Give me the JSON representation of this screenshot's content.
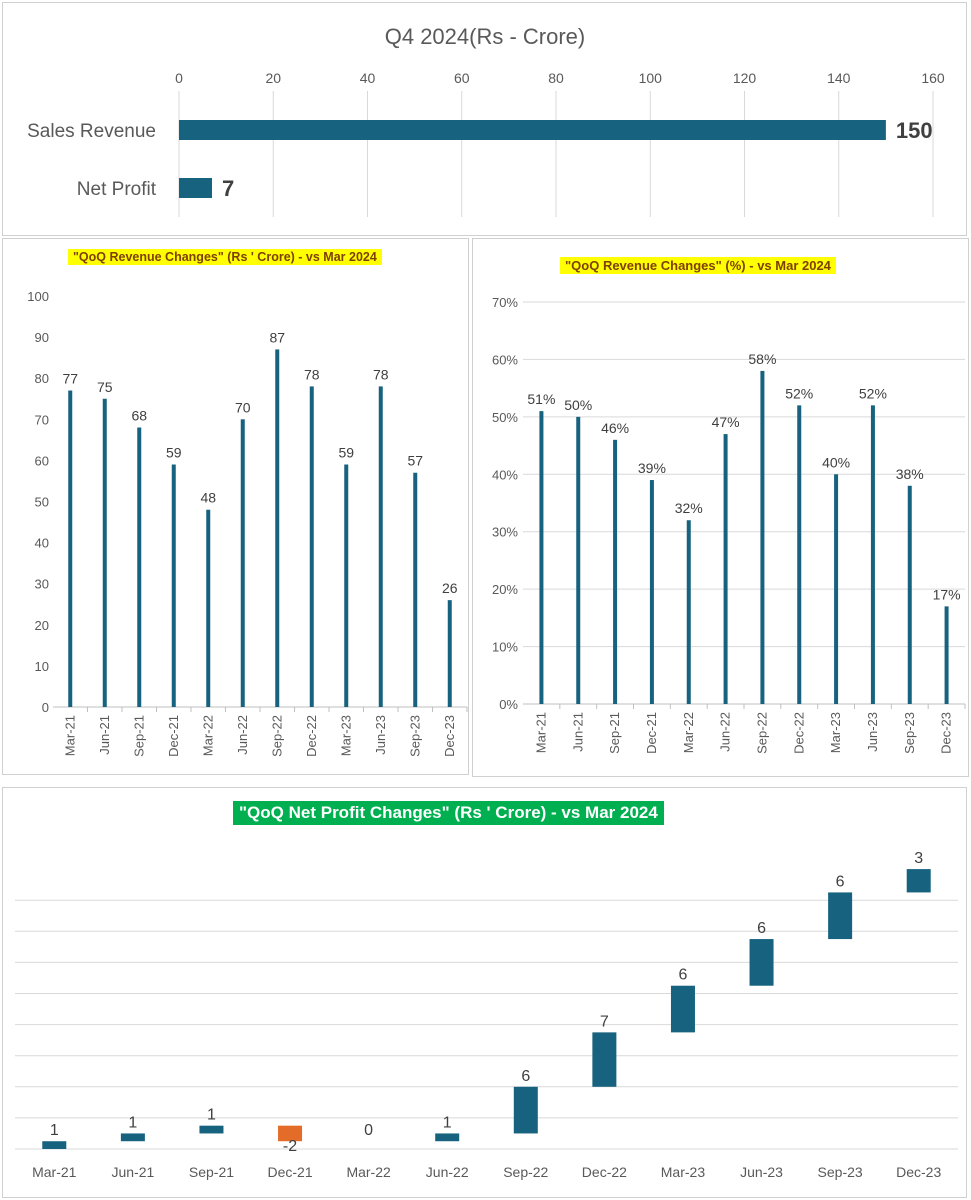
{
  "colors": {
    "bar": "#16627f",
    "negative": "#e46c29",
    "grid": "#d9d9d9",
    "title_yellow_bg": "#ffff00",
    "title_green_bg": "#00b050"
  },
  "chart_data": [
    {
      "type": "bar",
      "orientation": "horizontal",
      "title": "Q4 2024(Rs - Crore)",
      "categories": [
        "Sales Revenue",
        "Net Profit"
      ],
      "values": [
        150,
        7
      ],
      "data_labels": [
        "150",
        "7"
      ],
      "xlim": [
        0,
        160
      ],
      "x_ticks": [
        "0",
        "20",
        "40",
        "60",
        "80",
        "100",
        "120",
        "140",
        "160"
      ],
      "axis_position": "top",
      "grid": true
    },
    {
      "type": "bar",
      "title": "\"QoQ Revenue Changes\" (Rs ' Crore) - vs Mar 2024",
      "categories": [
        "Mar-21",
        "Jun-21",
        "Sep-21",
        "Dec-21",
        "Mar-22",
        "Jun-22",
        "Sep-22",
        "Dec-22",
        "Mar-23",
        "Jun-23",
        "Sep-23",
        "Dec-23"
      ],
      "values": [
        77,
        75,
        68,
        59,
        48,
        70,
        87,
        78,
        59,
        78,
        57,
        26
      ],
      "data_labels": [
        "77",
        "75",
        "68",
        "59",
        "48",
        "70",
        "87",
        "78",
        "59",
        "78",
        "57",
        "26"
      ],
      "ylim": [
        0,
        100
      ],
      "y_ticks": [
        "0",
        "10",
        "20",
        "30",
        "40",
        "50",
        "60",
        "70",
        "80",
        "90",
        "100"
      ],
      "grid": false
    },
    {
      "type": "bar",
      "title": "\"QoQ Revenue Changes\" (%) - vs Mar 2024",
      "categories": [
        "Mar-21",
        "Jun-21",
        "Sep-21",
        "Dec-21",
        "Mar-22",
        "Jun-22",
        "Sep-22",
        "Dec-22",
        "Mar-23",
        "Jun-23",
        "Sep-23",
        "Dec-23"
      ],
      "values": [
        51,
        50,
        46,
        39,
        32,
        47,
        58,
        52,
        40,
        52,
        38,
        17
      ],
      "data_labels": [
        "51%",
        "50%",
        "46%",
        "39%",
        "32%",
        "47%",
        "58%",
        "52%",
        "40%",
        "52%",
        "38%",
        "17%"
      ],
      "ylim": [
        0,
        70
      ],
      "y_ticks": [
        "0%",
        "10%",
        "20%",
        "30%",
        "40%",
        "50%",
        "60%",
        "70%"
      ],
      "grid": true
    },
    {
      "type": "waterfall",
      "title": "\"QoQ Net Profit Changes\" (Rs ' Crore) - vs Mar 2024",
      "categories": [
        "Mar-21",
        "Jun-21",
        "Sep-21",
        "Dec-21",
        "Mar-22",
        "Jun-22",
        "Sep-22",
        "Dec-22",
        "Mar-23",
        "Jun-23",
        "Sep-23",
        "Dec-23"
      ],
      "values": [
        1,
        1,
        1,
        -2,
        0,
        1,
        6,
        7,
        6,
        6,
        6,
        3
      ],
      "data_labels": [
        "1",
        "1",
        "1",
        "-2",
        "0",
        "1",
        "6",
        "7",
        "6",
        "6",
        "6",
        "3"
      ],
      "ylim": [
        0,
        40
      ],
      "grid": true
    }
  ]
}
